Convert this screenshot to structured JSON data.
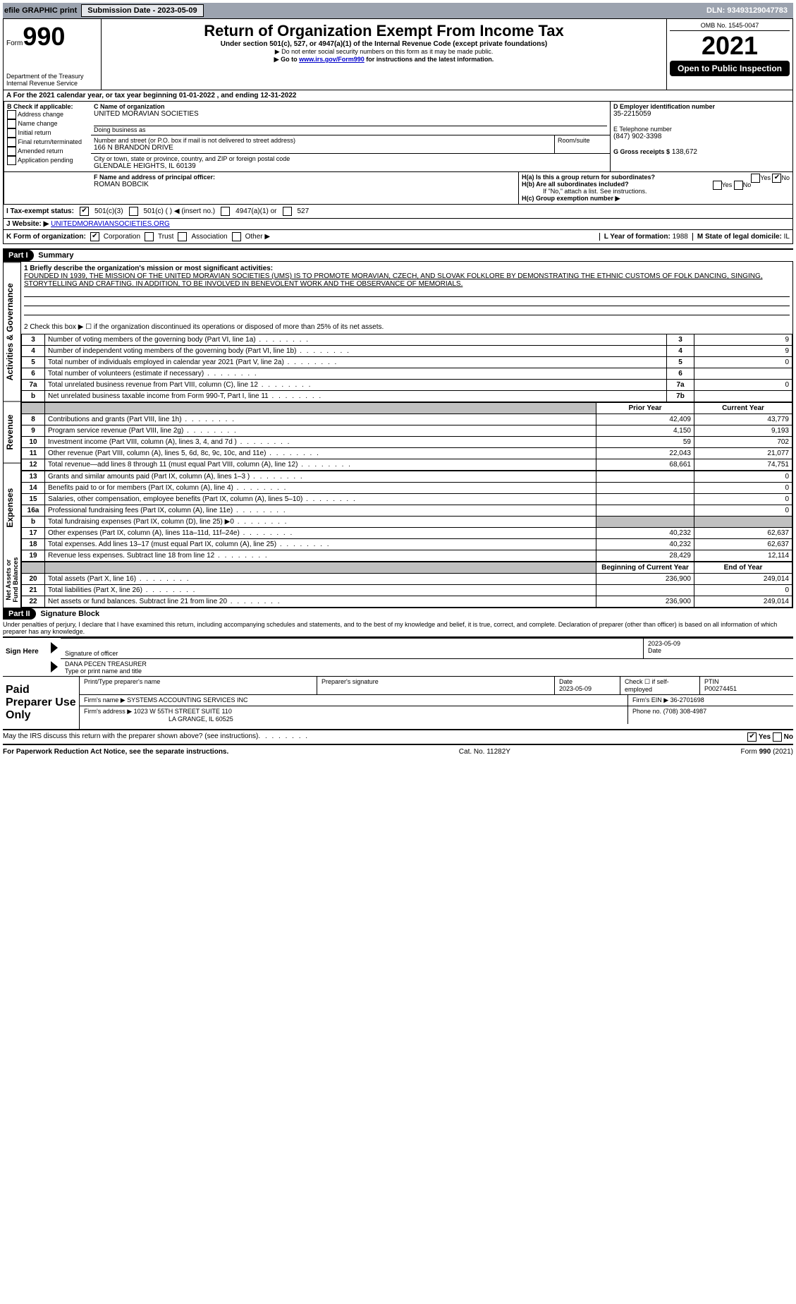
{
  "top_bar": {
    "efile_label": "efile GRAPHIC print",
    "submission_label": "Submission Date - 2023-05-09",
    "dln": "DLN: 93493129047783"
  },
  "header": {
    "form_label": "Form",
    "form_number": "990",
    "title": "Return of Organization Exempt From Income Tax",
    "subtitle1": "Under section 501(c), 527, or 4947(a)(1) of the Internal Revenue Code (except private foundations)",
    "subtitle2": "▶ Do not enter social security numbers on this form as it may be made public.",
    "subtitle3_prefix": "▶ Go to ",
    "subtitle3_link": "www.irs.gov/Form990",
    "subtitle3_suffix": " for instructions and the latest information.",
    "dept": "Department of the Treasury",
    "irs": "Internal Revenue Service",
    "omb": "OMB No. 1545-0047",
    "year": "2021",
    "inspection": "Open to Public Inspection"
  },
  "line_a": "A For the 2021 calendar year, or tax year beginning 01-01-2022    , and ending 12-31-2022",
  "box_b": {
    "title": "B Check if applicable:",
    "items": [
      "Address change",
      "Name change",
      "Initial return",
      "Final return/terminated",
      "Amended return",
      "Application pending"
    ]
  },
  "box_c": {
    "label_name": "C Name of organization",
    "name": "UNITED MORAVIAN SOCIETIES",
    "dba_label": "Doing business as",
    "dba": "",
    "street_label": "Number and street (or P.O. box if mail is not delivered to street address)",
    "room_label": "Room/suite",
    "street": "166 N BRANDON DRIVE",
    "city_label": "City or town, state or province, country, and ZIP or foreign postal code",
    "city": "GLENDALE HEIGHTS, IL  60139"
  },
  "box_d": {
    "label": "D Employer identification number",
    "value": "35-2215059"
  },
  "box_e": {
    "label": "E Telephone number",
    "value": "(847) 902-3398"
  },
  "box_f": {
    "label": "F Name and address of principal officer:",
    "value": "ROMAN BOBCIK"
  },
  "box_g": {
    "label": "G Gross receipts $",
    "value": "138,672"
  },
  "box_h": {
    "a": "H(a)  Is this a group return for subordinates?",
    "b": "H(b)  Are all subordinates included?",
    "b_note": "If \"No,\" attach a list. See instructions.",
    "c": "H(c)  Group exemption number ▶",
    "yes": "Yes",
    "no": "No"
  },
  "box_i": {
    "label": "I   Tax-exempt status:",
    "opts": [
      "501(c)(3)",
      "501(c) (   ) ◀ (insert no.)",
      "4947(a)(1) or",
      "527"
    ]
  },
  "box_j": {
    "label": "J   Website: ▶",
    "value": "UNITEDMORAVIANSOCIETIES.ORG"
  },
  "box_k": {
    "label": "K Form of organization:",
    "opts": [
      "Corporation",
      "Trust",
      "Association",
      "Other ▶"
    ]
  },
  "box_l": {
    "label": "L Year of formation:",
    "value": "1988"
  },
  "box_m": {
    "label": "M State of legal domicile:",
    "value": "IL"
  },
  "part1": {
    "header": "Part I",
    "title": "Summary",
    "side_labels": [
      "Activities & Governance",
      "Revenue",
      "Expenses",
      "Net Assets or Fund Balances"
    ],
    "line1_label": "1  Briefly describe the organization's mission or most significant activities:",
    "mission": "FOUNDED IN 1939, THE MISSION OF THE UNITED MORAVIAN SOCIETIES (UMS) IS TO PROMOTE MORAVIAN, CZECH, AND SLOVAK FOLKLORE BY DEMONSTRATING THE ETHNIC CUSTOMS OF FOLK DANCING, SINGING, STORYTELLING AND CRAFTING. IN ADDITION, TO BE INVOLVED IN BENEVOLENT WORK AND THE OBSERVANCE OF MEMORIALS.",
    "line2": "2   Check this box ▶ ☐  if the organization discontinued its operations or disposed of more than 25% of its net assets.",
    "gov_rows": [
      {
        "n": "3",
        "desc": "Number of voting members of the governing body (Part VI, line 1a)",
        "box": "3",
        "val": "9"
      },
      {
        "n": "4",
        "desc": "Number of independent voting members of the governing body (Part VI, line 1b)",
        "box": "4",
        "val": "9"
      },
      {
        "n": "5",
        "desc": "Total number of individuals employed in calendar year 2021 (Part V, line 2a)",
        "box": "5",
        "val": "0"
      },
      {
        "n": "6",
        "desc": "Total number of volunteers (estimate if necessary)",
        "box": "6",
        "val": ""
      },
      {
        "n": "7a",
        "desc": "Total unrelated business revenue from Part VIII, column (C), line 12",
        "box": "7a",
        "val": "0"
      },
      {
        "n": "b",
        "desc": "Net unrelated business taxable income from Form 990-T, Part I, line 11",
        "box": "7b",
        "val": ""
      }
    ],
    "col_headers": {
      "prior": "Prior Year",
      "current": "Current Year"
    },
    "rev_rows": [
      {
        "n": "8",
        "desc": "Contributions and grants (Part VIII, line 1h)",
        "py": "42,409",
        "cy": "43,779"
      },
      {
        "n": "9",
        "desc": "Program service revenue (Part VIII, line 2g)",
        "py": "4,150",
        "cy": "9,193"
      },
      {
        "n": "10",
        "desc": "Investment income (Part VIII, column (A), lines 3, 4, and 7d )",
        "py": "59",
        "cy": "702"
      },
      {
        "n": "11",
        "desc": "Other revenue (Part VIII, column (A), lines 5, 6d, 8c, 9c, 10c, and 11e)",
        "py": "22,043",
        "cy": "21,077"
      },
      {
        "n": "12",
        "desc": "Total revenue—add lines 8 through 11 (must equal Part VIII, column (A), line 12)",
        "py": "68,661",
        "cy": "74,751"
      }
    ],
    "exp_rows": [
      {
        "n": "13",
        "desc": "Grants and similar amounts paid (Part IX, column (A), lines 1–3 )",
        "py": "",
        "cy": "0"
      },
      {
        "n": "14",
        "desc": "Benefits paid to or for members (Part IX, column (A), line 4)",
        "py": "",
        "cy": "0"
      },
      {
        "n": "15",
        "desc": "Salaries, other compensation, employee benefits (Part IX, column (A), lines 5–10)",
        "py": "",
        "cy": "0"
      },
      {
        "n": "16a",
        "desc": "Professional fundraising fees (Part IX, column (A), line 11e)",
        "py": "",
        "cy": "0"
      },
      {
        "n": "b",
        "desc": "Total fundraising expenses (Part IX, column (D), line 25) ▶0",
        "py": "GRAY",
        "cy": "GRAY"
      },
      {
        "n": "17",
        "desc": "Other expenses (Part IX, column (A), lines 11a–11d, 11f–24e)",
        "py": "40,232",
        "cy": "62,637"
      },
      {
        "n": "18",
        "desc": "Total expenses. Add lines 13–17 (must equal Part IX, column (A), line 25)",
        "py": "40,232",
        "cy": "62,637"
      },
      {
        "n": "19",
        "desc": "Revenue less expenses. Subtract line 18 from line 12",
        "py": "28,429",
        "cy": "12,114"
      }
    ],
    "net_headers": {
      "beg": "Beginning of Current Year",
      "end": "End of Year"
    },
    "net_rows": [
      {
        "n": "20",
        "desc": "Total assets (Part X, line 16)",
        "py": "236,900",
        "cy": "249,014"
      },
      {
        "n": "21",
        "desc": "Total liabilities (Part X, line 26)",
        "py": "",
        "cy": "0"
      },
      {
        "n": "22",
        "desc": "Net assets or fund balances. Subtract line 21 from line 20",
        "py": "236,900",
        "cy": "249,014"
      }
    ]
  },
  "part2": {
    "header": "Part II",
    "title": "Signature Block",
    "declaration": "Under penalties of perjury, I declare that I have examined this return, including accompanying schedules and statements, and to the best of my knowledge and belief, it is true, correct, and complete. Declaration of preparer (other than officer) is based on all information of which preparer has any knowledge.",
    "sign_here": "Sign Here",
    "sig_officer": "Signature of officer",
    "sig_date": "2023-05-09",
    "date_label": "Date",
    "officer_name": "DANA PECEN  TREASURER",
    "type_name": "Type or print name and title",
    "paid_prep": "Paid Preparer Use Only",
    "prep_name_label": "Print/Type preparer's name",
    "prep_sig_label": "Preparer's signature",
    "prep_date_label": "Date",
    "prep_date": "2023-05-09",
    "check_if": "Check ☐ if self-employed",
    "ptin_label": "PTIN",
    "ptin": "P00274451",
    "firm_name_label": "Firm's name    ▶",
    "firm_name": "SYSTEMS ACCOUNTING SERVICES INC",
    "firm_ein_label": "Firm's EIN ▶",
    "firm_ein": "36-2701698",
    "firm_addr_label": "Firm's address ▶",
    "firm_addr1": "1023 W 55TH STREET SUITE 110",
    "firm_addr2": "LA GRANGE, IL  60525",
    "phone_label": "Phone no.",
    "phone": "(708) 308-4987",
    "discuss": "May the IRS discuss this return with the preparer shown above? (see instructions)",
    "yes": "Yes",
    "no": "No"
  },
  "footer": {
    "pra": "For Paperwork Reduction Act Notice, see the separate instructions.",
    "cat": "Cat. No. 11282Y",
    "form": "Form 990 (2021)"
  }
}
